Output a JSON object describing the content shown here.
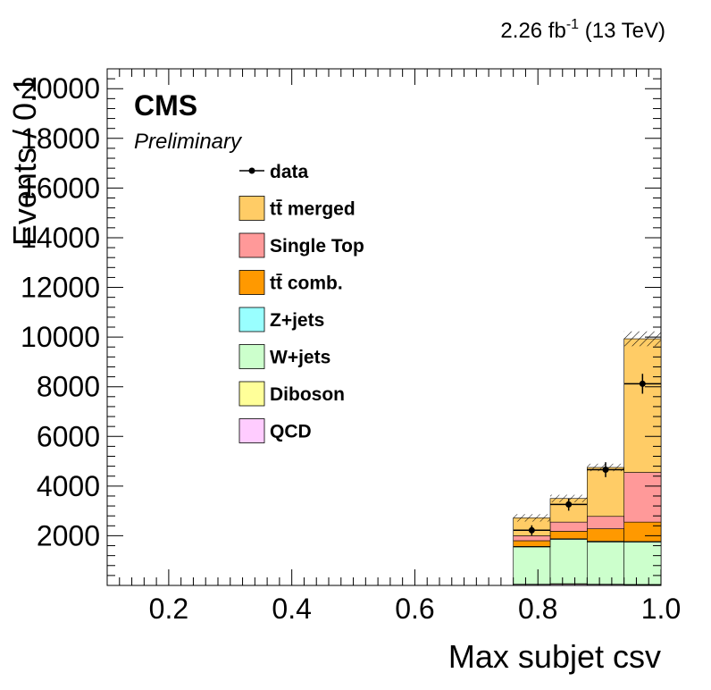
{
  "lumi_label": "2.26 fb",
  "lumi_superscript": "-1",
  "lumi_energy": " (13 TeV)",
  "experiment": "CMS",
  "status": "Preliminary",
  "chart_data": {
    "type": "bar",
    "stacked": true,
    "xlabel": "Max subjet csv",
    "ylabel": "Events / 0.1",
    "xlim": [
      0.1,
      1.0
    ],
    "ylim": [
      0,
      20800
    ],
    "x_ticks": [
      "0.2",
      "0.4",
      "0.6",
      "0.8",
      "1.0"
    ],
    "y_ticks": [
      "2000",
      "4000",
      "6000",
      "8000",
      "10000",
      "12000",
      "14000",
      "16000",
      "18000",
      "20000"
    ],
    "bin_edges": [
      0.76,
      0.82,
      0.88,
      0.94,
      1.0
    ],
    "series": [
      {
        "name": "QCD",
        "color": "#ffccff",
        "values": [
          30,
          40,
          30,
          20
        ]
      },
      {
        "name": "Diboson",
        "color": "#ffff99",
        "values": [
          20,
          30,
          20,
          20
        ]
      },
      {
        "name": "W+jets",
        "color": "#ccffcc",
        "values": [
          1500,
          1780,
          1700,
          1700
        ]
      },
      {
        "name": "Z+jets",
        "color": "#99ffff",
        "values": [
          20,
          30,
          30,
          30
        ]
      },
      {
        "name": "tt̄ comb.",
        "color": "#ff9900",
        "values": [
          230,
          300,
          500,
          780
        ]
      },
      {
        "name": "Single Top",
        "color": "#ff9999",
        "values": [
          200,
          370,
          500,
          2000
        ]
      },
      {
        "name": "tt̄ merged",
        "color": "#ffcc66",
        "values": [
          720,
          950,
          1970,
          5380
        ]
      }
    ],
    "data": {
      "name": "data",
      "x": [
        0.79,
        0.85,
        0.91,
        0.97
      ],
      "y": [
        2220,
        3260,
        4660,
        8120
      ],
      "yerr": [
        200,
        250,
        300,
        400
      ]
    },
    "legend_order": [
      "data",
      "tt̄ merged",
      "Single Top",
      "tt̄ comb.",
      "Z+jets",
      "W+jets",
      "Diboson",
      "QCD"
    ],
    "grid": false,
    "legend_position": "upper-left"
  }
}
